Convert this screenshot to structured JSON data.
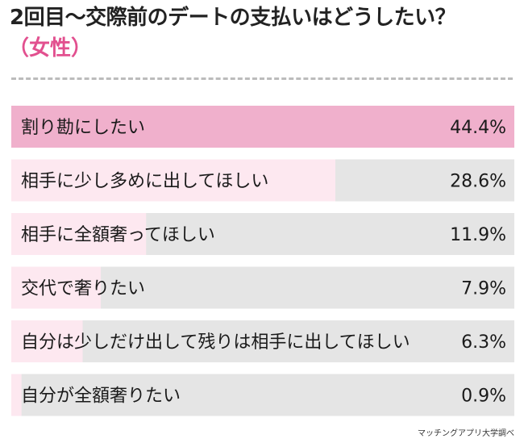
{
  "title": "2回目〜交際前のデートの支払いはどうしたい？",
  "subtitle": "（女性）",
  "source": "マッチングアプリ大学調べ",
  "colors": {
    "accent": "#e2508f",
    "bar_first": "#f0b0cc",
    "bar_rest": "#fde8f0",
    "track": "#e5e5e5",
    "divider": "#bcbcbc"
  },
  "chart_data": {
    "type": "bar",
    "orientation": "horizontal",
    "categories": [
      "割り勘にしたい",
      "相手に少し多めに出してほしい",
      "相手に全額奢ってほしい",
      "交代で奢りたい",
      "自分は少しだけ出して残りは相手に出してほしい",
      "自分が全額奢りたい"
    ],
    "values": [
      44.4,
      28.6,
      11.9,
      7.9,
      6.3,
      0.9
    ],
    "value_labels": [
      "44.4%",
      "28.6%",
      "11.9%",
      "7.9%",
      "6.3%",
      "0.9%"
    ],
    "xlim": [
      0,
      44.4
    ],
    "grid": false
  }
}
